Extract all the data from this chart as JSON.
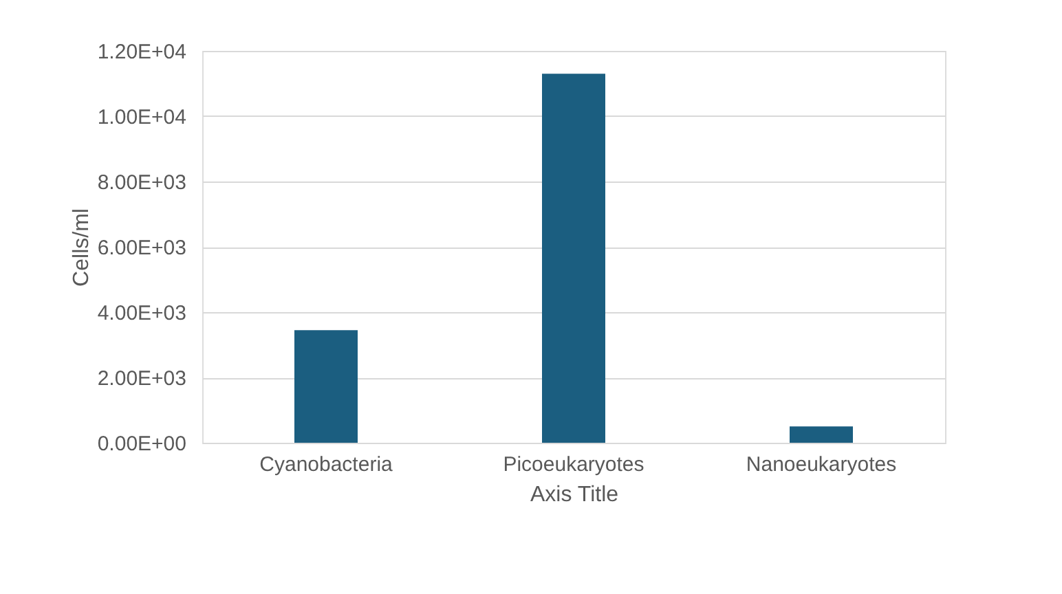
{
  "chart_data": {
    "type": "bar",
    "xlabel": "Axis Title",
    "ylabel": "Cells/ml",
    "categories": [
      "Cyanobacteria",
      "Picoeukaryotes",
      "Nanoeukaryotes"
    ],
    "values": [
      3450,
      11300,
      500
    ],
    "color": "#1b5e80",
    "ylim": [
      0,
      12000
    ],
    "yticks": [
      {
        "value": 0,
        "label": "0.00E+00"
      },
      {
        "value": 2000,
        "label": "2.00E+03"
      },
      {
        "value": 4000,
        "label": "4.00E+03"
      },
      {
        "value": 6000,
        "label": "6.00E+03"
      },
      {
        "value": 8000,
        "label": "8.00E+03"
      },
      {
        "value": 10000,
        "label": "1.00E+04"
      },
      {
        "value": 12000,
        "label": "1.20E+04"
      }
    ],
    "grid": "y"
  }
}
